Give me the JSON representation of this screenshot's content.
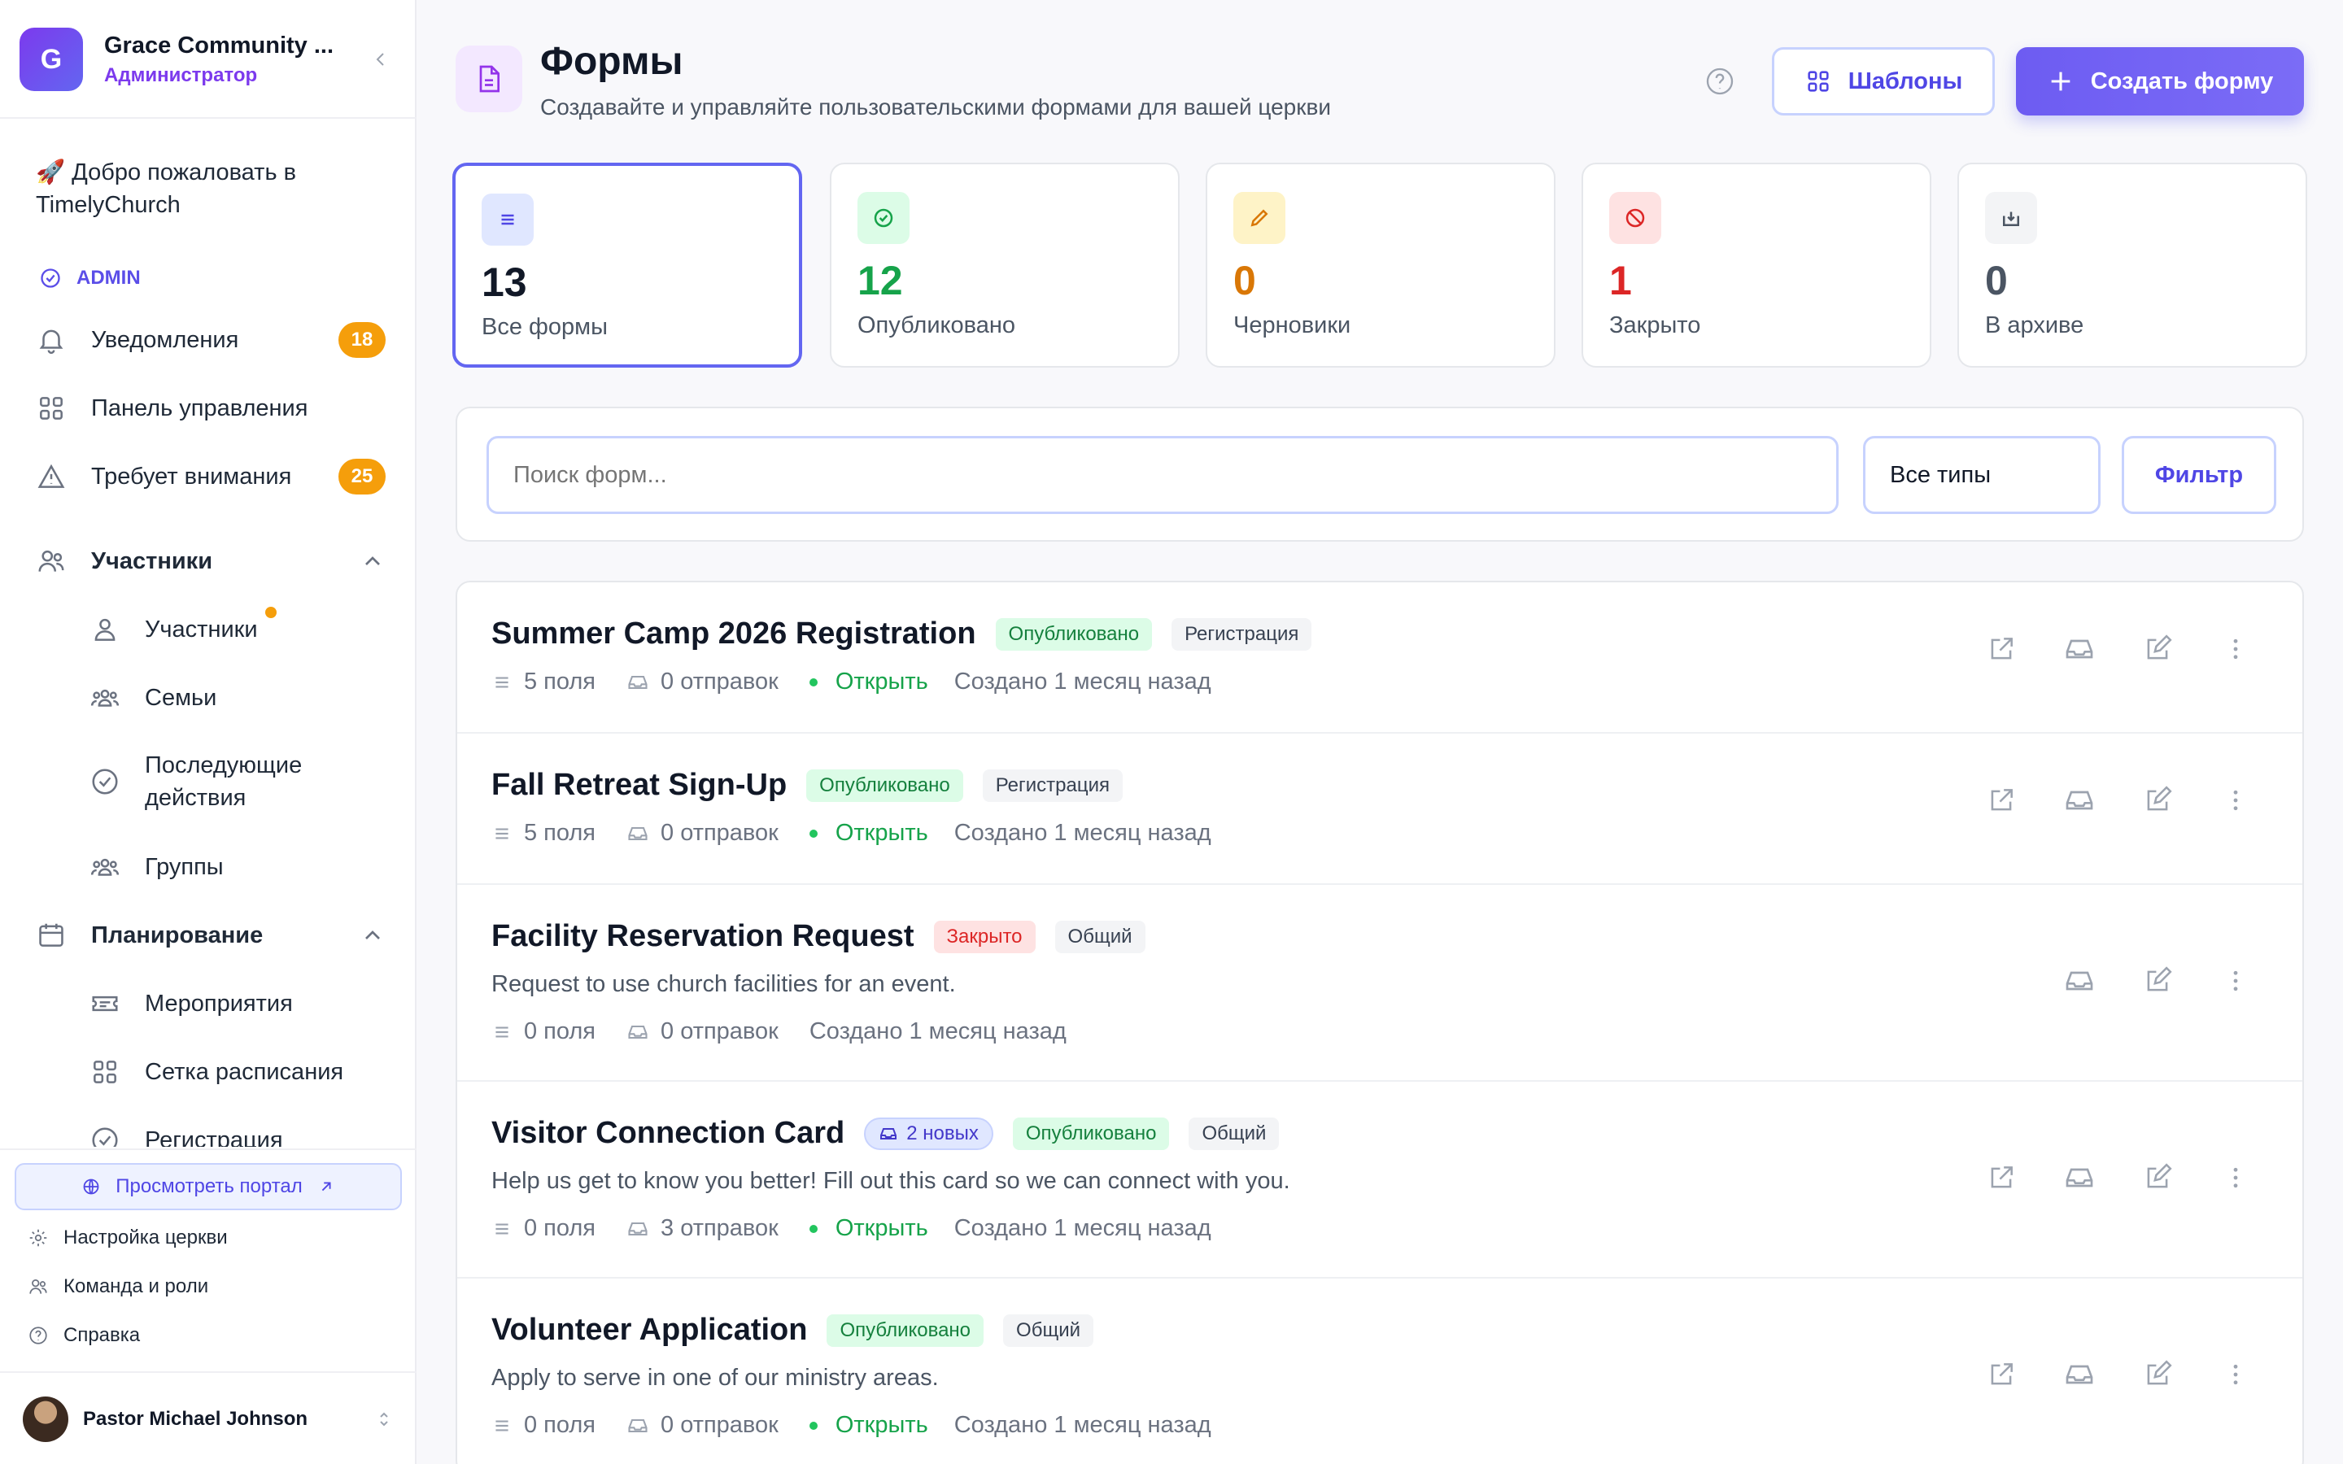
{
  "sidebar": {
    "org_initial": "G",
    "org_name": "Grace Community ...",
    "org_role": "Администратор",
    "welcome": "🚀 Добро пожаловать в TimelyChurch",
    "admin_label": "ADMIN",
    "notifications": {
      "label": "Уведомления",
      "badge": "18"
    },
    "dashboard": {
      "label": "Панель управления"
    },
    "attention": {
      "label": "Требует внимания",
      "badge": "25"
    },
    "members_section": {
      "label": "Участники"
    },
    "members": {
      "label": "Участники"
    },
    "families": {
      "label": "Семьи"
    },
    "followups": {
      "label": "Последующие действия"
    },
    "groups": {
      "label": "Группы"
    },
    "planning_section": {
      "label": "Планирование"
    },
    "events": {
      "label": "Мероприятия"
    },
    "schedule": {
      "label": "Сетка расписания"
    },
    "registration": {
      "label": "Регистрация"
    },
    "portal_label": "Просмотреть портал",
    "church_settings": "Настройка церкви",
    "team_roles": "Команда и роли",
    "help": "Справка",
    "user_name": "Pastor Michael Johnson"
  },
  "header": {
    "title": "Формы",
    "subtitle": "Создавайте и управляйте пользовательскими формами для вашей церкви",
    "templates_label": "Шаблоны",
    "create_label": "Создать форму"
  },
  "stats": [
    {
      "value": "13",
      "label": "Все формы",
      "color": "#111827"
    },
    {
      "value": "12",
      "label": "Опубликовано",
      "color": "#16a34a"
    },
    {
      "value": "0",
      "label": "Черновики",
      "color": "#d97706"
    },
    {
      "value": "1",
      "label": "Закрыто",
      "color": "#dc2626"
    },
    {
      "value": "0",
      "label": "В архиве",
      "color": "#4b5563"
    }
  ],
  "filters": {
    "search_placeholder": "Поиск форм...",
    "type_select": "Все типы",
    "filter_label": "Фильтр"
  },
  "forms": [
    {
      "title": "Summer Camp 2026 Registration",
      "status": "Опубликовано",
      "category": "Регистрация",
      "fields": "5 поля",
      "submissions": "0 отправок",
      "open": "Открыть",
      "created": "Создано 1 месяц назад"
    },
    {
      "title": "Fall Retreat Sign-Up",
      "status": "Опубликовано",
      "category": "Регистрация",
      "fields": "5 поля",
      "submissions": "0 отправок",
      "open": "Открыть",
      "created": "Создано 1 месяц назад"
    },
    {
      "title": "Facility Reservation Request",
      "status": "Закрыто",
      "category": "Общий",
      "description": "Request to use church facilities for an event.",
      "fields": "0 поля",
      "submissions": "0 отправок",
      "created": "Создано 1 месяц назад"
    },
    {
      "title": "Visitor Connection Card",
      "new_badge": "2 новых",
      "status": "Опубликовано",
      "category": "Общий",
      "description": "Help us get to know you better! Fill out this card so we can connect with you.",
      "fields": "0 поля",
      "submissions": "3 отправок",
      "open": "Открыть",
      "created": "Создано 1 месяц назад"
    },
    {
      "title": "Volunteer Application",
      "status": "Опубликовано",
      "category": "Общий",
      "description": "Apply to serve in one of our ministry areas.",
      "fields": "0 поля",
      "submissions": "0 отправок",
      "open": "Открыть",
      "created": "Создано 1 месяц назад"
    }
  ],
  "colors": {
    "accent": "#6366f1",
    "published": "#16a34a",
    "closed": "#dc2626",
    "badge": "#f59e0b"
  }
}
